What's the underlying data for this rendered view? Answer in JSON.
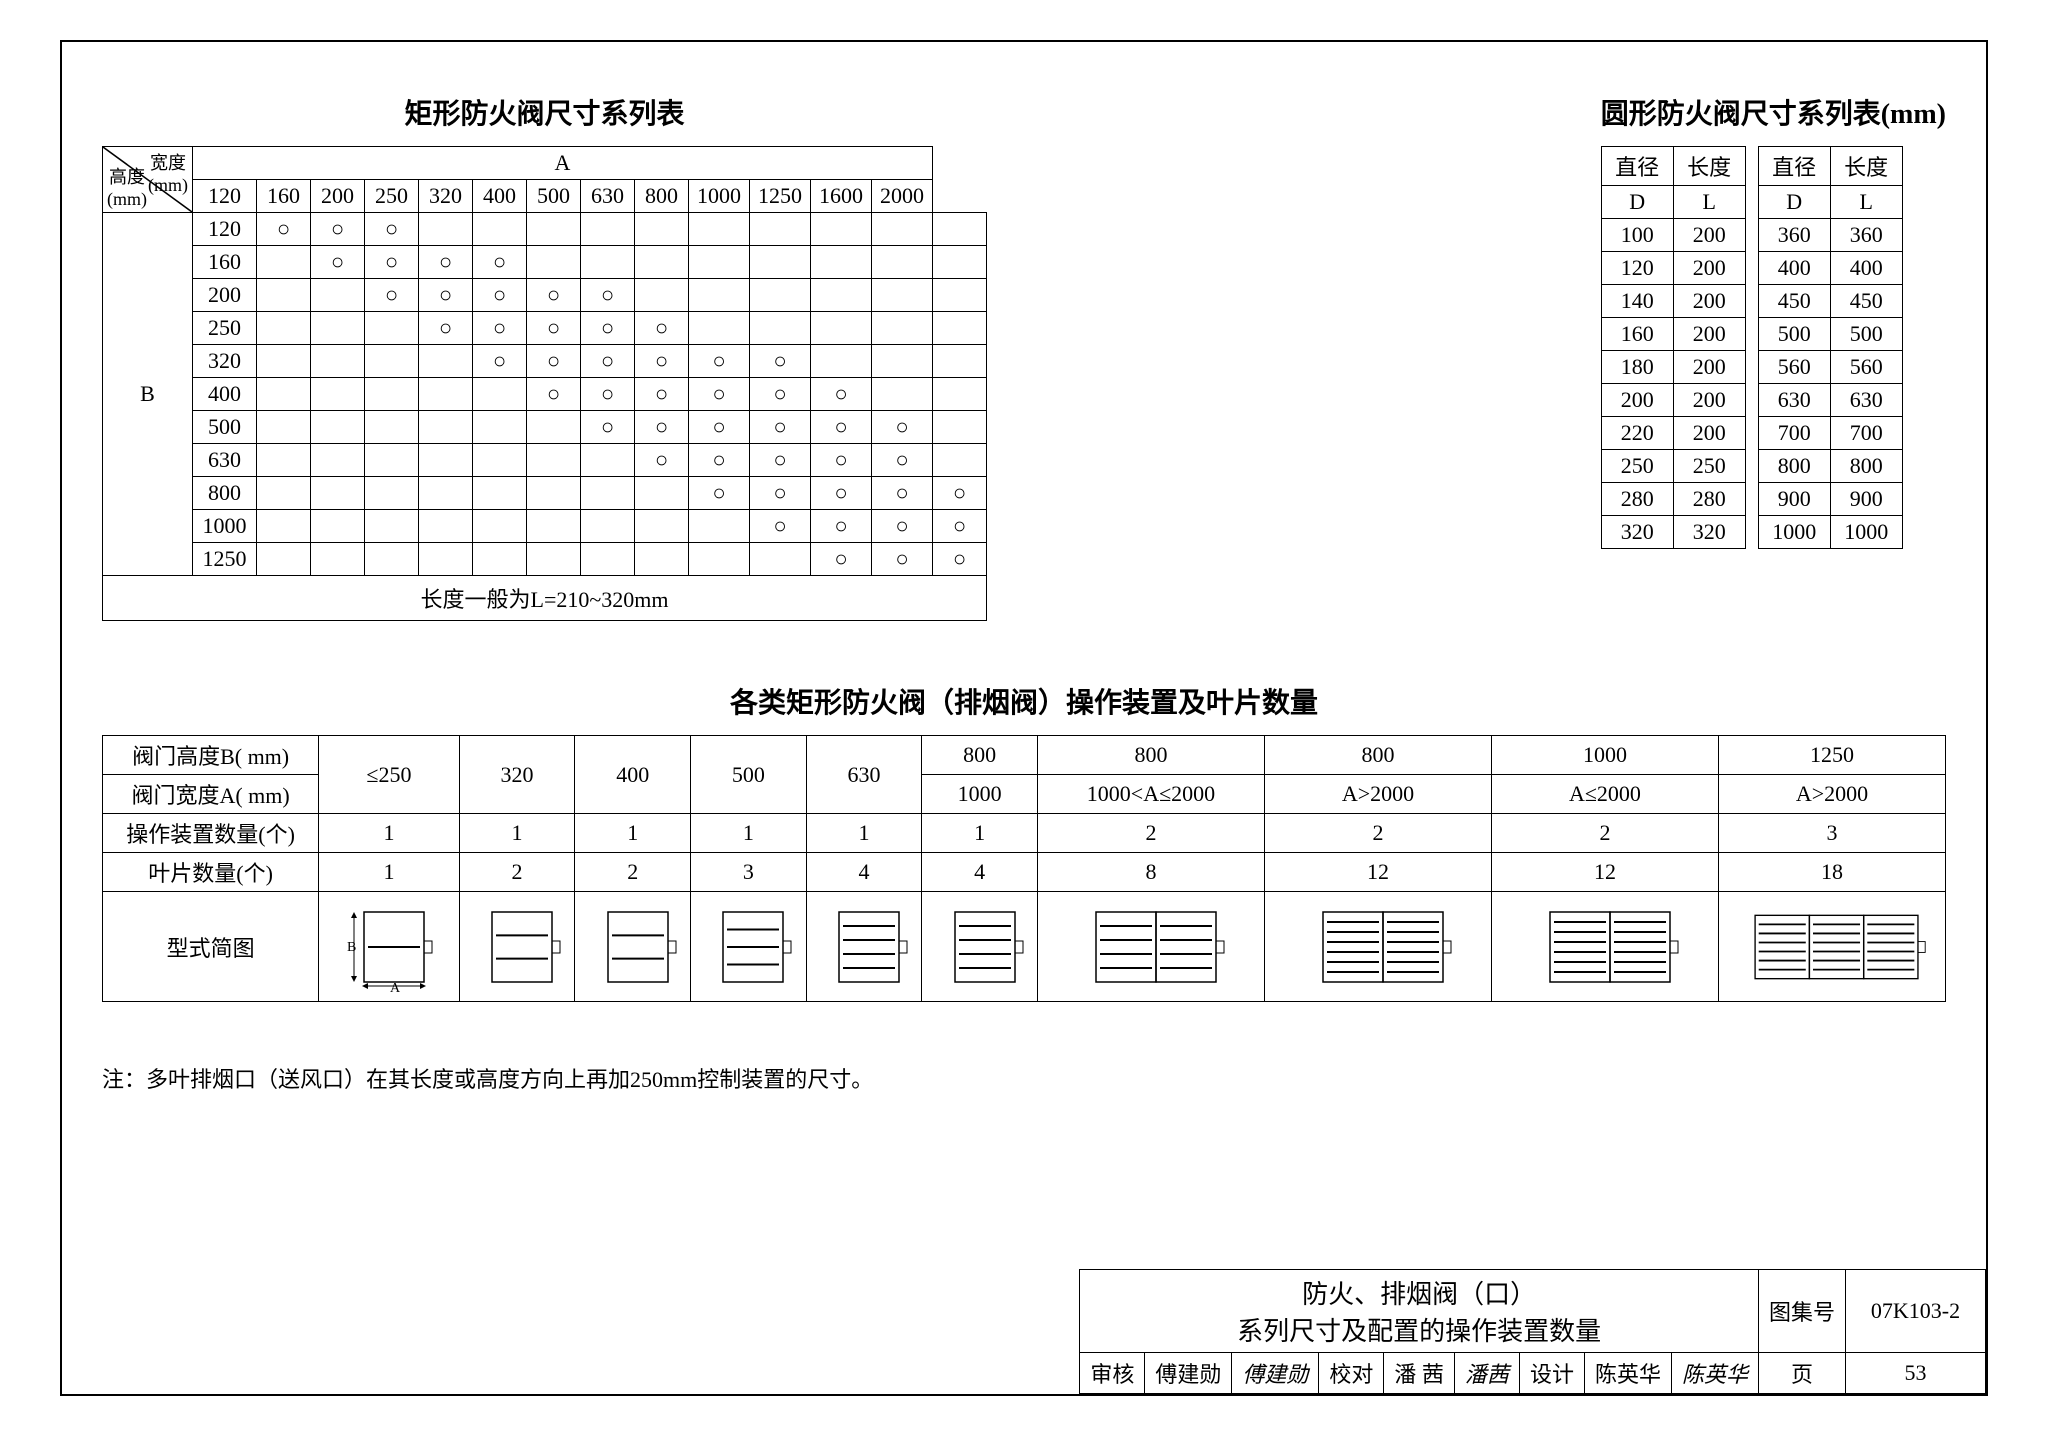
{
  "colors": {
    "line": "#000000",
    "bg": "#ffffff"
  },
  "rect": {
    "title": "矩形防火阀尺寸系列表",
    "corner_w": "宽度\n(mm)",
    "corner_h": "高度\n(mm)",
    "A_label": "A",
    "B_label": "B",
    "cols": [
      "120",
      "160",
      "200",
      "250",
      "320",
      "400",
      "500",
      "630",
      "800",
      "1000",
      "1250",
      "1600",
      "2000"
    ],
    "rows": [
      "120",
      "160",
      "200",
      "250",
      "320",
      "400",
      "500",
      "630",
      "800",
      "1000",
      "1250"
    ],
    "marks": {
      "120": [
        1,
        1,
        1,
        0,
        0,
        0,
        0,
        0,
        0,
        0,
        0,
        0,
        0
      ],
      "160": [
        0,
        1,
        1,
        1,
        1,
        0,
        0,
        0,
        0,
        0,
        0,
        0,
        0
      ],
      "200": [
        0,
        0,
        1,
        1,
        1,
        1,
        1,
        0,
        0,
        0,
        0,
        0,
        0
      ],
      "250": [
        0,
        0,
        0,
        1,
        1,
        1,
        1,
        1,
        0,
        0,
        0,
        0,
        0
      ],
      "320": [
        0,
        0,
        0,
        0,
        1,
        1,
        1,
        1,
        1,
        1,
        0,
        0,
        0
      ],
      "400": [
        0,
        0,
        0,
        0,
        0,
        1,
        1,
        1,
        1,
        1,
        1,
        0,
        0
      ],
      "500": [
        0,
        0,
        0,
        0,
        0,
        0,
        1,
        1,
        1,
        1,
        1,
        1,
        0
      ],
      "630": [
        0,
        0,
        0,
        0,
        0,
        0,
        0,
        1,
        1,
        1,
        1,
        1,
        0
      ],
      "800": [
        0,
        0,
        0,
        0,
        0,
        0,
        0,
        0,
        1,
        1,
        1,
        1,
        1
      ],
      "1000": [
        0,
        0,
        0,
        0,
        0,
        0,
        0,
        0,
        0,
        1,
        1,
        1,
        1
      ],
      "1250": [
        0,
        0,
        0,
        0,
        0,
        0,
        0,
        0,
        0,
        0,
        1,
        1,
        1
      ]
    },
    "mark_symbol": "○",
    "length_note": "长度一般为L=210~320mm"
  },
  "round": {
    "title": "圆形防火阀尺寸系列表(mm)",
    "headers": [
      "直径",
      "长度"
    ],
    "subheaders": [
      "D",
      "L"
    ],
    "left": [
      [
        "100",
        "200"
      ],
      [
        "120",
        "200"
      ],
      [
        "140",
        "200"
      ],
      [
        "160",
        "200"
      ],
      [
        "180",
        "200"
      ],
      [
        "200",
        "200"
      ],
      [
        "220",
        "200"
      ],
      [
        "250",
        "250"
      ],
      [
        "280",
        "280"
      ],
      [
        "320",
        "320"
      ]
    ],
    "right": [
      [
        "360",
        "360"
      ],
      [
        "400",
        "400"
      ],
      [
        "450",
        "450"
      ],
      [
        "500",
        "500"
      ],
      [
        "560",
        "560"
      ],
      [
        "630",
        "630"
      ],
      [
        "700",
        "700"
      ],
      [
        "800",
        "800"
      ],
      [
        "900",
        "900"
      ],
      [
        "1000",
        "1000"
      ]
    ]
  },
  "mid": {
    "title": "各类矩形防火阀（排烟阀）操作装置及叶片数量",
    "row_labels": [
      "阀门高度B( mm)",
      "阀门宽度A( mm)",
      "操作装置数量(个)",
      "叶片数量(个)",
      "型式简图"
    ],
    "B_row": [
      "≤250",
      "320",
      "400",
      "500",
      "630",
      "800",
      "800",
      "800",
      "1000",
      "1250"
    ],
    "A_row": [
      "",
      "",
      "",
      "",
      "",
      "1000",
      "1000<A≤2000",
      "A>2000",
      "A≤2000",
      "A>2000"
    ],
    "ops": [
      "1",
      "1",
      "1",
      "1",
      "1",
      "1",
      "2",
      "2",
      "2",
      "3"
    ],
    "blades": [
      "1",
      "2",
      "2",
      "3",
      "4",
      "4",
      "8",
      "12",
      "12",
      "18"
    ]
  },
  "footnote": "注：多叶排烟口（送风口）在其长度或高度方向上再加250mm控制装置的尺寸。",
  "titleblock": {
    "main1": "防火、排烟阀（口）",
    "main2": "系列尺寸及配置的操作装置数量",
    "tuji_label": "图集号",
    "tuji_no": "07K103-2",
    "page_label": "页",
    "page_no": "53",
    "review_label": "审核",
    "review_name": "傅建勋",
    "review_sig": "傅建勋",
    "check_label": "校对",
    "check_name": "潘 茜",
    "check_sig": "潘茜",
    "design_label": "设计",
    "design_name": "陈英华",
    "design_sig": "陈英华"
  }
}
